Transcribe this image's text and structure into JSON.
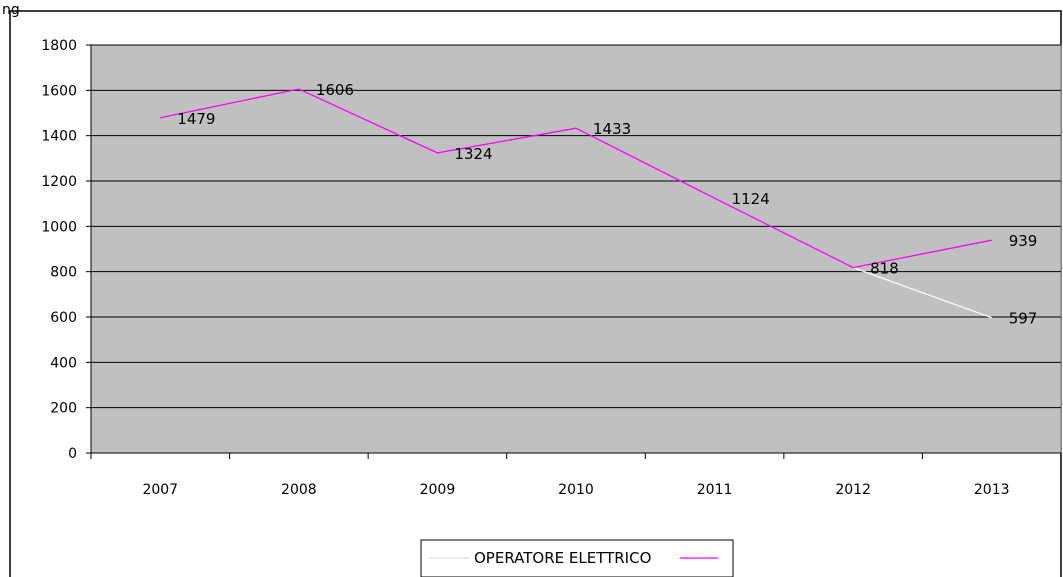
{
  "top_text": "ng",
  "chart_data": {
    "type": "line",
    "title": "",
    "xlabel": "",
    "ylabel": "",
    "ylim": [
      0,
      1800
    ],
    "yticks": [
      0,
      200,
      400,
      600,
      800,
      1000,
      1200,
      1400,
      1600,
      1800
    ],
    "categories": [
      "2007",
      "2008",
      "2009",
      "2010",
      "2011",
      "2012",
      "2013"
    ],
    "grid": "horizontal",
    "plot_background": "#c0c0c0",
    "legend": {
      "placement": "bottom",
      "label": "OPERATORE ELETTRICO"
    },
    "series": [
      {
        "name": "OPERATORE ELETTRICO",
        "color": "#ff00ff",
        "values": [
          1479,
          1606,
          1324,
          1433,
          1124,
          818,
          939
        ],
        "labels": [
          "1479",
          "1606",
          "1324",
          "1433",
          "1124",
          "818",
          "939"
        ]
      },
      {
        "name": "",
        "color": "#ffffff",
        "values": [
          null,
          null,
          null,
          null,
          null,
          818,
          597
        ],
        "labels": [
          "",
          "",
          "",
          "",
          "",
          "",
          "597"
        ]
      }
    ]
  }
}
